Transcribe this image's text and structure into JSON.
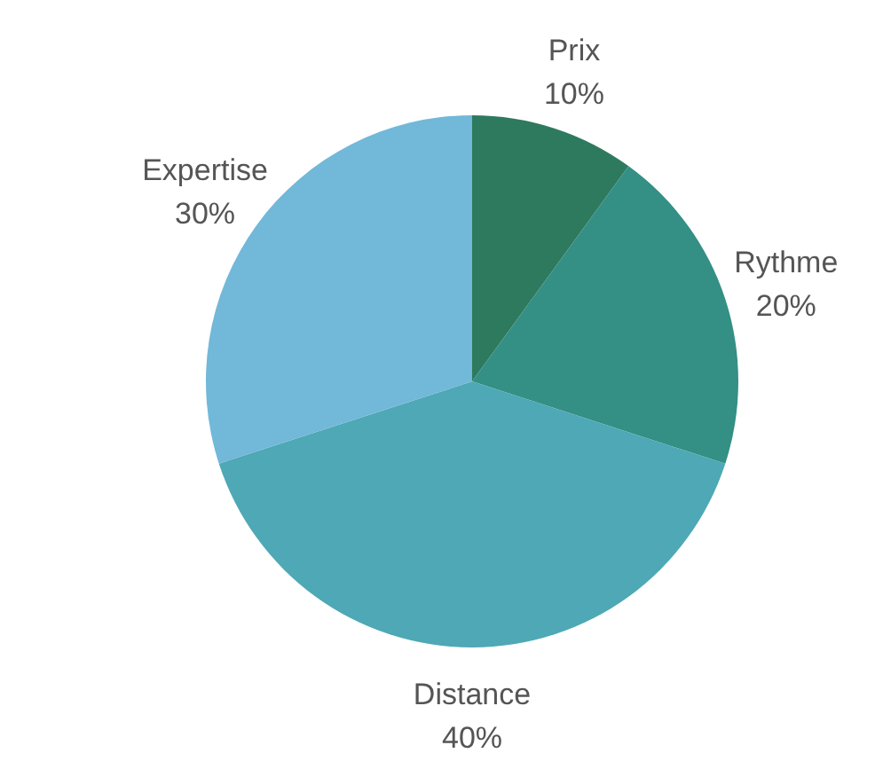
{
  "chart_data": {
    "type": "pie",
    "categories": [
      "Prix",
      "Rythme",
      "Distance",
      "Expertise"
    ],
    "values": [
      10,
      20,
      40,
      30
    ],
    "colors": [
      "#2e7a5e",
      "#348f85",
      "#4ea8b5",
      "#72b8d8"
    ],
    "value_labels": [
      "10%",
      "20%",
      "40%",
      "30%"
    ]
  }
}
